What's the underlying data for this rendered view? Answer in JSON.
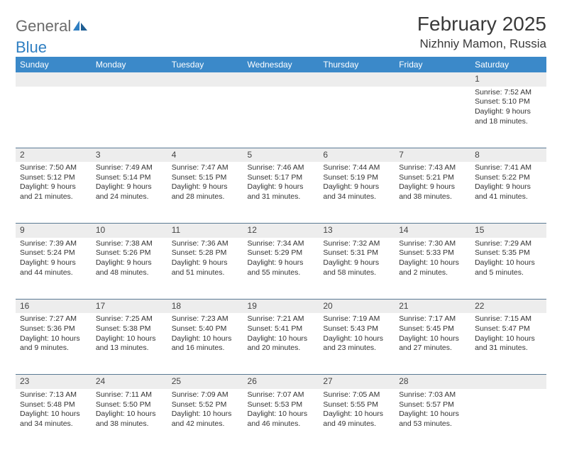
{
  "brand": {
    "word1": "General",
    "word2": "Blue"
  },
  "title": "February 2025",
  "location": "Nizhniy Mamon, Russia",
  "colors": {
    "header_bg": "#3b89c9",
    "header_text": "#ffffff",
    "daynum_bg": "#ededed",
    "rule": "#5a7a94",
    "logo_gray": "#6b6b6b",
    "logo_blue": "#2f7fc2",
    "body_text": "#333333",
    "page_bg": "#ffffff"
  },
  "weekdays": [
    "Sunday",
    "Monday",
    "Tuesday",
    "Wednesday",
    "Thursday",
    "Friday",
    "Saturday"
  ],
  "weeks": [
    [
      null,
      null,
      null,
      null,
      null,
      null,
      {
        "n": "1",
        "sr": "Sunrise: 7:52 AM",
        "ss": "Sunset: 5:10 PM",
        "dl1": "Daylight: 9 hours",
        "dl2": "and 18 minutes."
      }
    ],
    [
      {
        "n": "2",
        "sr": "Sunrise: 7:50 AM",
        "ss": "Sunset: 5:12 PM",
        "dl1": "Daylight: 9 hours",
        "dl2": "and 21 minutes."
      },
      {
        "n": "3",
        "sr": "Sunrise: 7:49 AM",
        "ss": "Sunset: 5:14 PM",
        "dl1": "Daylight: 9 hours",
        "dl2": "and 24 minutes."
      },
      {
        "n": "4",
        "sr": "Sunrise: 7:47 AM",
        "ss": "Sunset: 5:15 PM",
        "dl1": "Daylight: 9 hours",
        "dl2": "and 28 minutes."
      },
      {
        "n": "5",
        "sr": "Sunrise: 7:46 AM",
        "ss": "Sunset: 5:17 PM",
        "dl1": "Daylight: 9 hours",
        "dl2": "and 31 minutes."
      },
      {
        "n": "6",
        "sr": "Sunrise: 7:44 AM",
        "ss": "Sunset: 5:19 PM",
        "dl1": "Daylight: 9 hours",
        "dl2": "and 34 minutes."
      },
      {
        "n": "7",
        "sr": "Sunrise: 7:43 AM",
        "ss": "Sunset: 5:21 PM",
        "dl1": "Daylight: 9 hours",
        "dl2": "and 38 minutes."
      },
      {
        "n": "8",
        "sr": "Sunrise: 7:41 AM",
        "ss": "Sunset: 5:22 PM",
        "dl1": "Daylight: 9 hours",
        "dl2": "and 41 minutes."
      }
    ],
    [
      {
        "n": "9",
        "sr": "Sunrise: 7:39 AM",
        "ss": "Sunset: 5:24 PM",
        "dl1": "Daylight: 9 hours",
        "dl2": "and 44 minutes."
      },
      {
        "n": "10",
        "sr": "Sunrise: 7:38 AM",
        "ss": "Sunset: 5:26 PM",
        "dl1": "Daylight: 9 hours",
        "dl2": "and 48 minutes."
      },
      {
        "n": "11",
        "sr": "Sunrise: 7:36 AM",
        "ss": "Sunset: 5:28 PM",
        "dl1": "Daylight: 9 hours",
        "dl2": "and 51 minutes."
      },
      {
        "n": "12",
        "sr": "Sunrise: 7:34 AM",
        "ss": "Sunset: 5:29 PM",
        "dl1": "Daylight: 9 hours",
        "dl2": "and 55 minutes."
      },
      {
        "n": "13",
        "sr": "Sunrise: 7:32 AM",
        "ss": "Sunset: 5:31 PM",
        "dl1": "Daylight: 9 hours",
        "dl2": "and 58 minutes."
      },
      {
        "n": "14",
        "sr": "Sunrise: 7:30 AM",
        "ss": "Sunset: 5:33 PM",
        "dl1": "Daylight: 10 hours",
        "dl2": "and 2 minutes."
      },
      {
        "n": "15",
        "sr": "Sunrise: 7:29 AM",
        "ss": "Sunset: 5:35 PM",
        "dl1": "Daylight: 10 hours",
        "dl2": "and 5 minutes."
      }
    ],
    [
      {
        "n": "16",
        "sr": "Sunrise: 7:27 AM",
        "ss": "Sunset: 5:36 PM",
        "dl1": "Daylight: 10 hours",
        "dl2": "and 9 minutes."
      },
      {
        "n": "17",
        "sr": "Sunrise: 7:25 AM",
        "ss": "Sunset: 5:38 PM",
        "dl1": "Daylight: 10 hours",
        "dl2": "and 13 minutes."
      },
      {
        "n": "18",
        "sr": "Sunrise: 7:23 AM",
        "ss": "Sunset: 5:40 PM",
        "dl1": "Daylight: 10 hours",
        "dl2": "and 16 minutes."
      },
      {
        "n": "19",
        "sr": "Sunrise: 7:21 AM",
        "ss": "Sunset: 5:41 PM",
        "dl1": "Daylight: 10 hours",
        "dl2": "and 20 minutes."
      },
      {
        "n": "20",
        "sr": "Sunrise: 7:19 AM",
        "ss": "Sunset: 5:43 PM",
        "dl1": "Daylight: 10 hours",
        "dl2": "and 23 minutes."
      },
      {
        "n": "21",
        "sr": "Sunrise: 7:17 AM",
        "ss": "Sunset: 5:45 PM",
        "dl1": "Daylight: 10 hours",
        "dl2": "and 27 minutes."
      },
      {
        "n": "22",
        "sr": "Sunrise: 7:15 AM",
        "ss": "Sunset: 5:47 PM",
        "dl1": "Daylight: 10 hours",
        "dl2": "and 31 minutes."
      }
    ],
    [
      {
        "n": "23",
        "sr": "Sunrise: 7:13 AM",
        "ss": "Sunset: 5:48 PM",
        "dl1": "Daylight: 10 hours",
        "dl2": "and 34 minutes."
      },
      {
        "n": "24",
        "sr": "Sunrise: 7:11 AM",
        "ss": "Sunset: 5:50 PM",
        "dl1": "Daylight: 10 hours",
        "dl2": "and 38 minutes."
      },
      {
        "n": "25",
        "sr": "Sunrise: 7:09 AM",
        "ss": "Sunset: 5:52 PM",
        "dl1": "Daylight: 10 hours",
        "dl2": "and 42 minutes."
      },
      {
        "n": "26",
        "sr": "Sunrise: 7:07 AM",
        "ss": "Sunset: 5:53 PM",
        "dl1": "Daylight: 10 hours",
        "dl2": "and 46 minutes."
      },
      {
        "n": "27",
        "sr": "Sunrise: 7:05 AM",
        "ss": "Sunset: 5:55 PM",
        "dl1": "Daylight: 10 hours",
        "dl2": "and 49 minutes."
      },
      {
        "n": "28",
        "sr": "Sunrise: 7:03 AM",
        "ss": "Sunset: 5:57 PM",
        "dl1": "Daylight: 10 hours",
        "dl2": "and 53 minutes."
      },
      null
    ]
  ]
}
